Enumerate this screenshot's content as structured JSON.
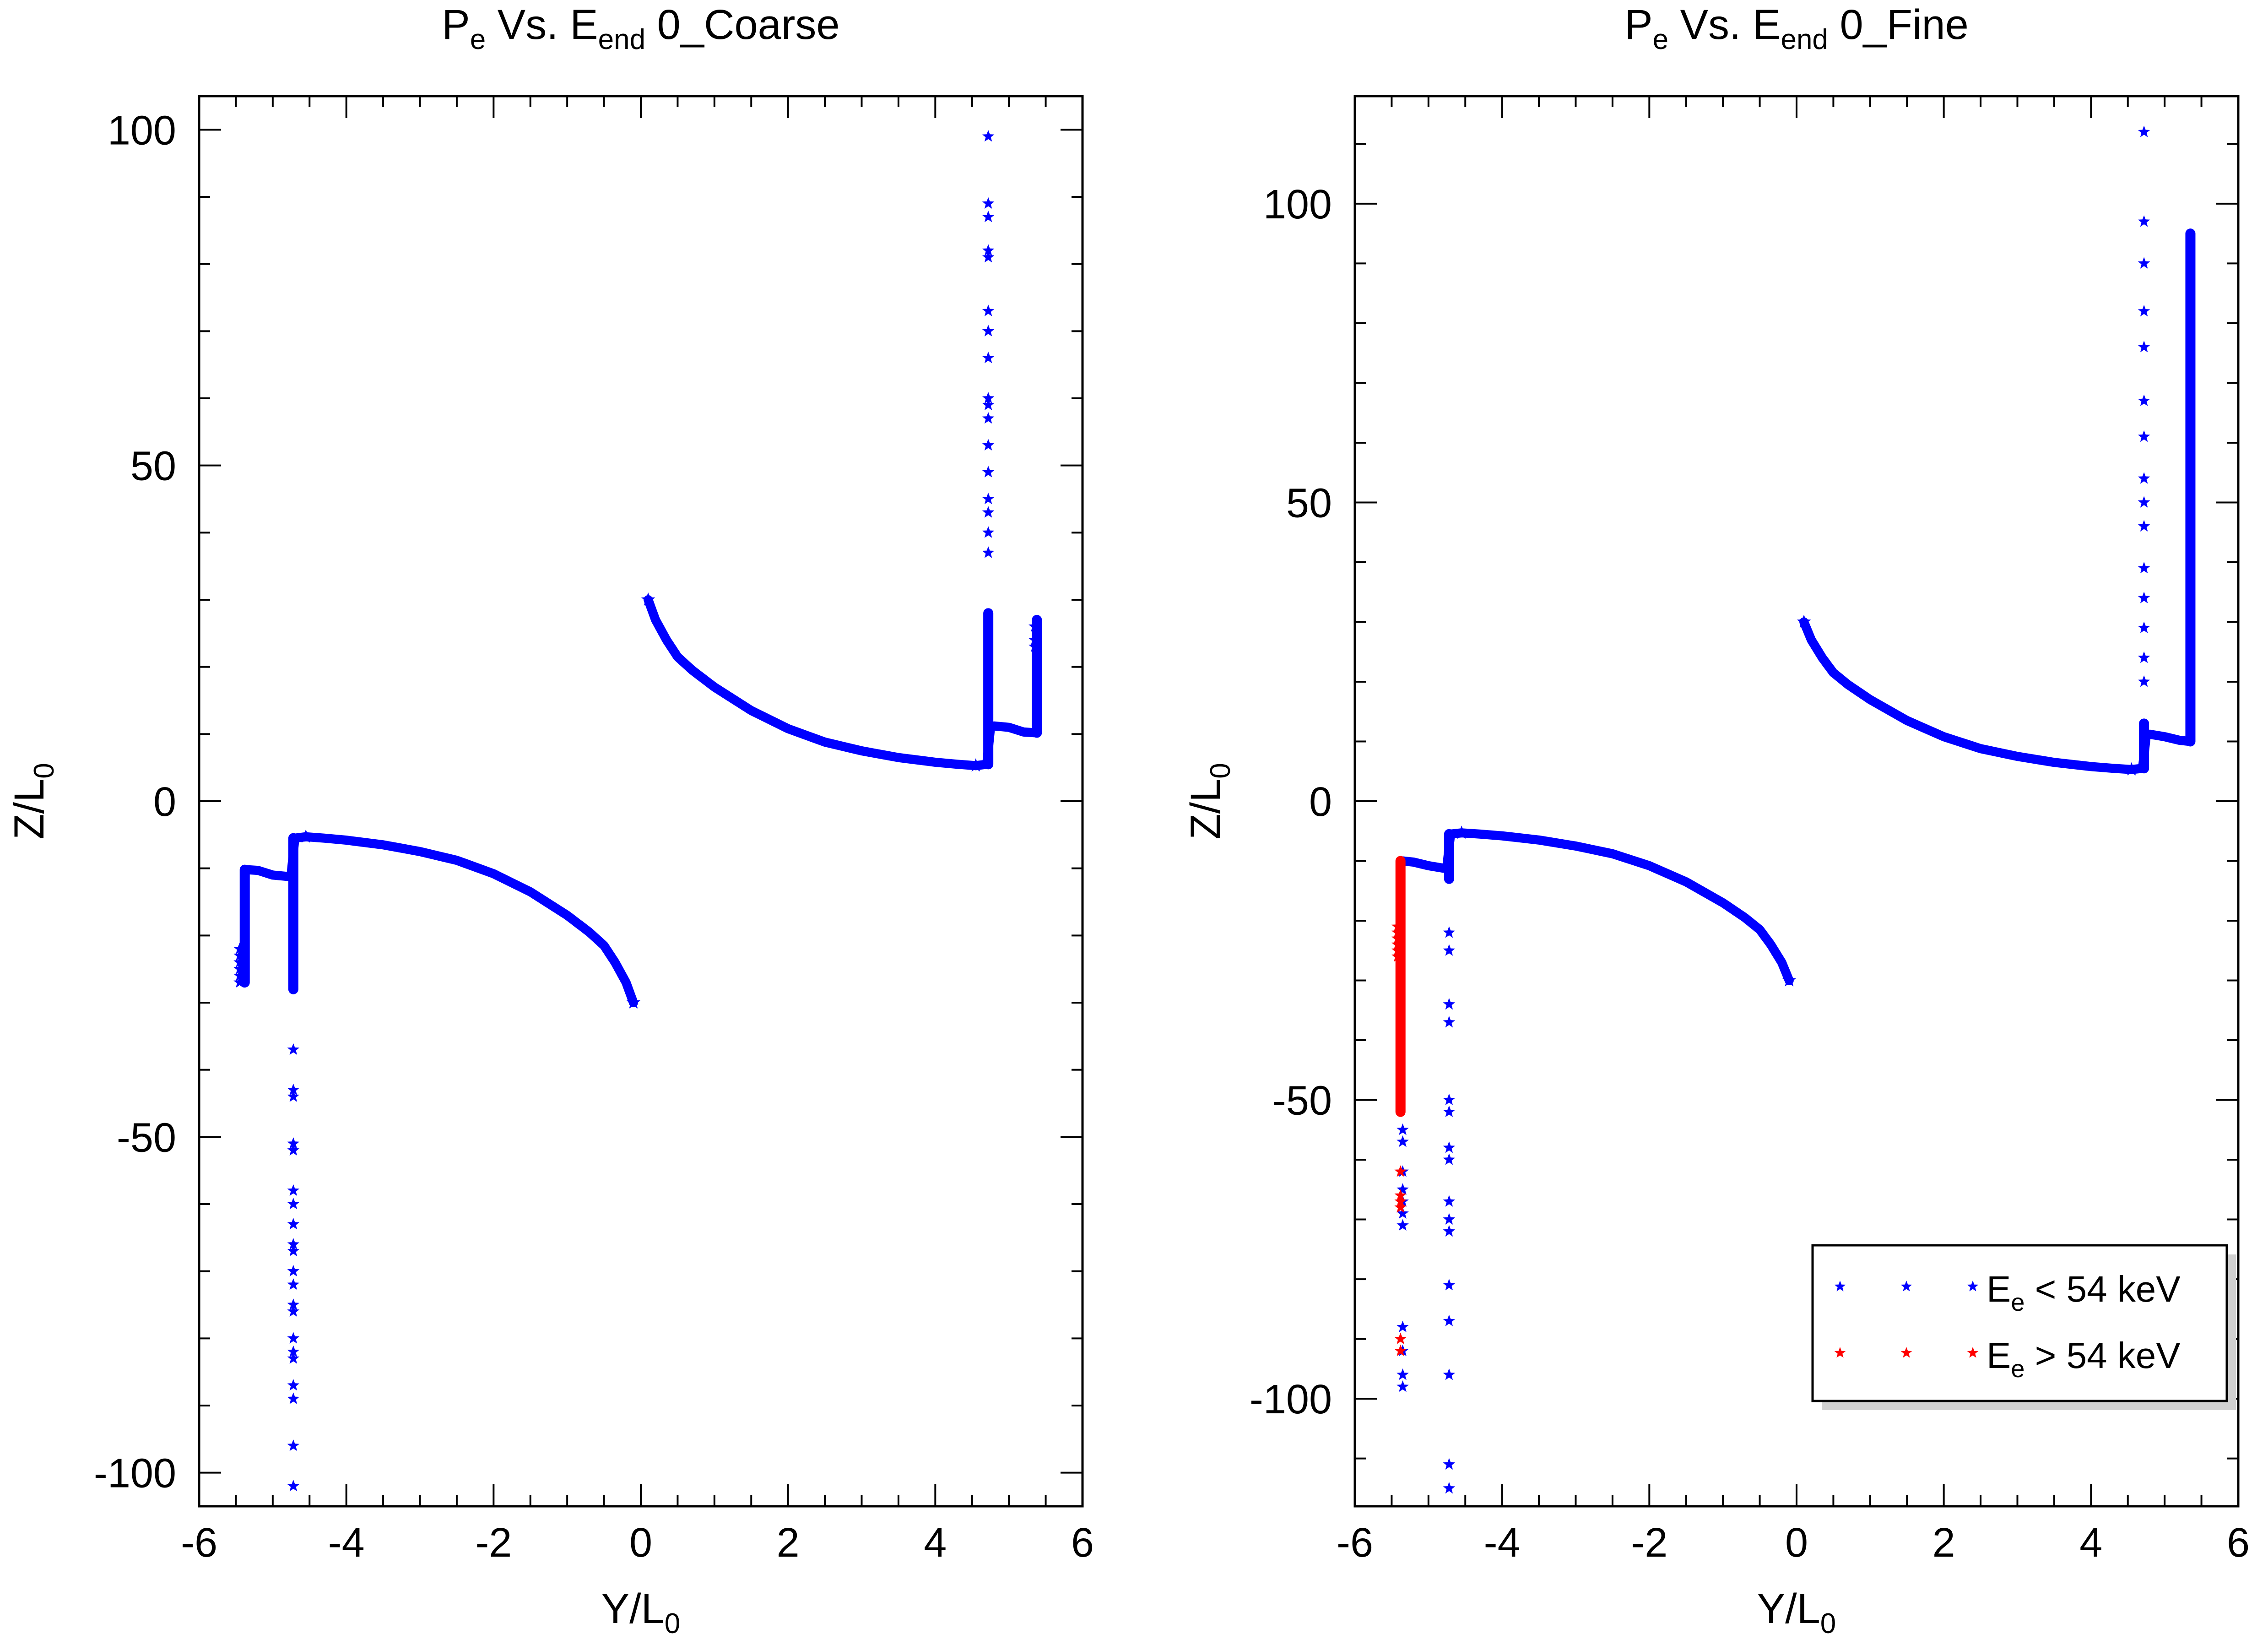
{
  "chart_data": [
    {
      "type": "scatter",
      "title": {
        "base": "P",
        "sub1": "e",
        "mid": " Vs. E",
        "sub2": "end",
        "tail": " 0_Coarse"
      },
      "xlabel": {
        "base": "Y/L",
        "sub": "0"
      },
      "ylabel": {
        "base": "Z/L",
        "sub": "0"
      },
      "xlim": [
        -6,
        6
      ],
      "ylim": [
        -105,
        105
      ],
      "xticks": [
        -6,
        -4,
        -2,
        0,
        2,
        4,
        6
      ],
      "xtick_labels": [
        "-6",
        "-4",
        "-2",
        "0",
        "2",
        "4",
        "6"
      ],
      "yticks": [
        -100,
        -50,
        0,
        50,
        100
      ],
      "ytick_labels": [
        "-100",
        "-50",
        "0",
        "50",
        "100"
      ],
      "series": [
        {
          "color": "#0000ff",
          "marker": "star",
          "curves": [
            {
              "x": [
                0.1,
                0.2,
                0.35,
                0.5,
                0.7,
                1.0,
                1.5,
                2.0,
                2.5,
                3.0,
                3.5,
                4.0,
                4.3,
                4.55
              ],
              "y": [
                30,
                27,
                24,
                21.5,
                19.5,
                17,
                13.5,
                10.8,
                8.8,
                7.5,
                6.5,
                5.8,
                5.5,
                5.3
              ]
            },
            {
              "x": [
                -0.1,
                -0.2,
                -0.35,
                -0.5,
                -0.7,
                -1.0,
                -1.5,
                -2.0,
                -2.5,
                -3.0,
                -3.5,
                -4.0,
                -4.3,
                -4.55
              ],
              "y": [
                -30,
                -27,
                -24,
                -21.5,
                -19.5,
                -17,
                -13.5,
                -10.8,
                -8.8,
                -7.5,
                -6.5,
                -5.8,
                -5.5,
                -5.3
              ]
            },
            {
              "x": [
                4.55,
                4.7,
                4.75,
                4.8,
                5.0,
                5.2,
                5.35
              ],
              "y": [
                5.3,
                5.5,
                11,
                11.2,
                11,
                10.3,
                10.2
              ]
            },
            {
              "x": [
                -4.55,
                -4.7,
                -4.75,
                -4.8,
                -5.0,
                -5.2,
                -5.35
              ],
              "y": [
                -5.3,
                -5.5,
                -11,
                -11.2,
                -11,
                -10.3,
                -10.2
              ]
            }
          ],
          "columns": [
            {
              "x": 4.72,
              "y_from": 5.5,
              "y_to": 28
            },
            {
              "x": 5.38,
              "y_from": 10.2,
              "y_to": 27
            },
            {
              "x": -4.72,
              "y_from": -5.5,
              "y_to": -28
            },
            {
              "x": -5.38,
              "y_from": -10.2,
              "y_to": -27
            }
          ],
          "points": [
            {
              "x": 4.72,
              "y": [
                99,
                89,
                87,
                82,
                81,
                73,
                70,
                66,
                60,
                59,
                57,
                53,
                49,
                45,
                43,
                40,
                37
              ]
            },
            {
              "x": -4.72,
              "y": [
                -37,
                -43,
                -44,
                -51,
                -52,
                -58,
                -60,
                -63,
                -66,
                -67,
                -70,
                -72,
                -75,
                -76,
                -80,
                -82,
                -83,
                -87,
                -89,
                -96,
                -102
              ]
            },
            {
              "x": 5.35,
              "y": [
                23,
                24,
                26
              ]
            },
            {
              "x": -5.45,
              "y": [
                -22,
                -23,
                -24,
                -25,
                -26,
                -27
              ]
            }
          ]
        }
      ]
    },
    {
      "type": "scatter",
      "title": {
        "base": "P",
        "sub1": "e",
        "mid": " Vs. E",
        "sub2": "end",
        "tail": " 0_Fine"
      },
      "xlabel": {
        "base": "Y/L",
        "sub": "0"
      },
      "ylabel": {
        "base": "Z/L",
        "sub": "0"
      },
      "xlim": [
        -6,
        6
      ],
      "ylim": [
        -118,
        118
      ],
      "xticks": [
        -6,
        -4,
        -2,
        0,
        2,
        4,
        6
      ],
      "xtick_labels": [
        "-6",
        "-4",
        "-2",
        "0",
        "2",
        "4",
        "6"
      ],
      "yticks": [
        -100,
        -50,
        0,
        50,
        100
      ],
      "ytick_labels": [
        "-100",
        "-50",
        "0",
        "50",
        "100"
      ],
      "legend": {
        "location": "lower-right",
        "entries": [
          {
            "color": "#0000ff",
            "base": "E",
            "sub": "e",
            "text": " < 54 keV"
          },
          {
            "color": "#ff0000",
            "base": "E",
            "sub": "e",
            "text": " > 54 keV"
          }
        ]
      },
      "series": [
        {
          "color": "#0000ff",
          "marker": "star",
          "curves": [
            {
              "x": [
                0.1,
                0.2,
                0.35,
                0.5,
                0.7,
                1.0,
                1.5,
                2.0,
                2.5,
                3.0,
                3.5,
                4.0,
                4.3,
                4.55
              ],
              "y": [
                30,
                27,
                24,
                21.5,
                19.5,
                17,
                13.5,
                10.8,
                8.8,
                7.5,
                6.5,
                5.8,
                5.5,
                5.3
              ]
            },
            {
              "x": [
                -0.1,
                -0.2,
                -0.35,
                -0.5,
                -0.7,
                -1.0,
                -1.5,
                -2.0,
                -2.5,
                -3.0,
                -3.5,
                -4.0,
                -4.3,
                -4.55
              ],
              "y": [
                -30,
                -27,
                -24,
                -21.5,
                -19.5,
                -17,
                -13.5,
                -10.8,
                -8.8,
                -7.5,
                -6.5,
                -5.8,
                -5.5,
                -5.3
              ]
            },
            {
              "x": [
                4.55,
                4.7,
                4.75,
                4.8,
                5.0,
                5.2,
                5.35
              ],
              "y": [
                5.3,
                5.5,
                11,
                11.2,
                10.8,
                10.2,
                10
              ]
            },
            {
              "x": [
                -4.55,
                -4.7,
                -4.75,
                -4.8,
                -5.0,
                -5.2,
                -5.35
              ],
              "y": [
                -5.3,
                -5.5,
                -11,
                -11.2,
                -10.8,
                -10.2,
                -10
              ]
            }
          ],
          "columns": [
            {
              "x": 4.72,
              "y_from": 5.5,
              "y_to": 13
            },
            {
              "x": 5.35,
              "y_from": 10,
              "y_to": 95
            },
            {
              "x": -4.72,
              "y_from": -5.5,
              "y_to": -13
            }
          ],
          "points": [
            {
              "x": 4.72,
              "y": [
                112,
                97,
                90,
                82,
                76,
                67,
                61,
                54,
                50,
                46,
                39,
                34,
                29,
                24,
                20
              ]
            },
            {
              "x": -4.72,
              "y": [
                -22,
                -25,
                -34,
                -37,
                -50,
                -52,
                -58,
                -60,
                -67,
                -70,
                -72,
                -81,
                -87,
                -96,
                -111,
                -115
              ]
            },
            {
              "x": -5.35,
              "y": [
                -55,
                -57,
                -62,
                -65,
                -67,
                -69,
                -71,
                -88,
                -92,
                -96,
                -98
              ]
            }
          ]
        },
        {
          "color": "#ff0000",
          "marker": "star",
          "columns": [
            {
              "x": -5.38,
              "y_from": -10,
              "y_to": -52
            }
          ],
          "points": [
            {
              "x": -5.42,
              "y": [
                -21,
                -22,
                -23,
                -24,
                -25,
                -26
              ]
            },
            {
              "x": -5.38,
              "y": [
                -62,
                -66,
                -67,
                -68,
                -90,
                -92
              ]
            }
          ]
        }
      ]
    }
  ]
}
